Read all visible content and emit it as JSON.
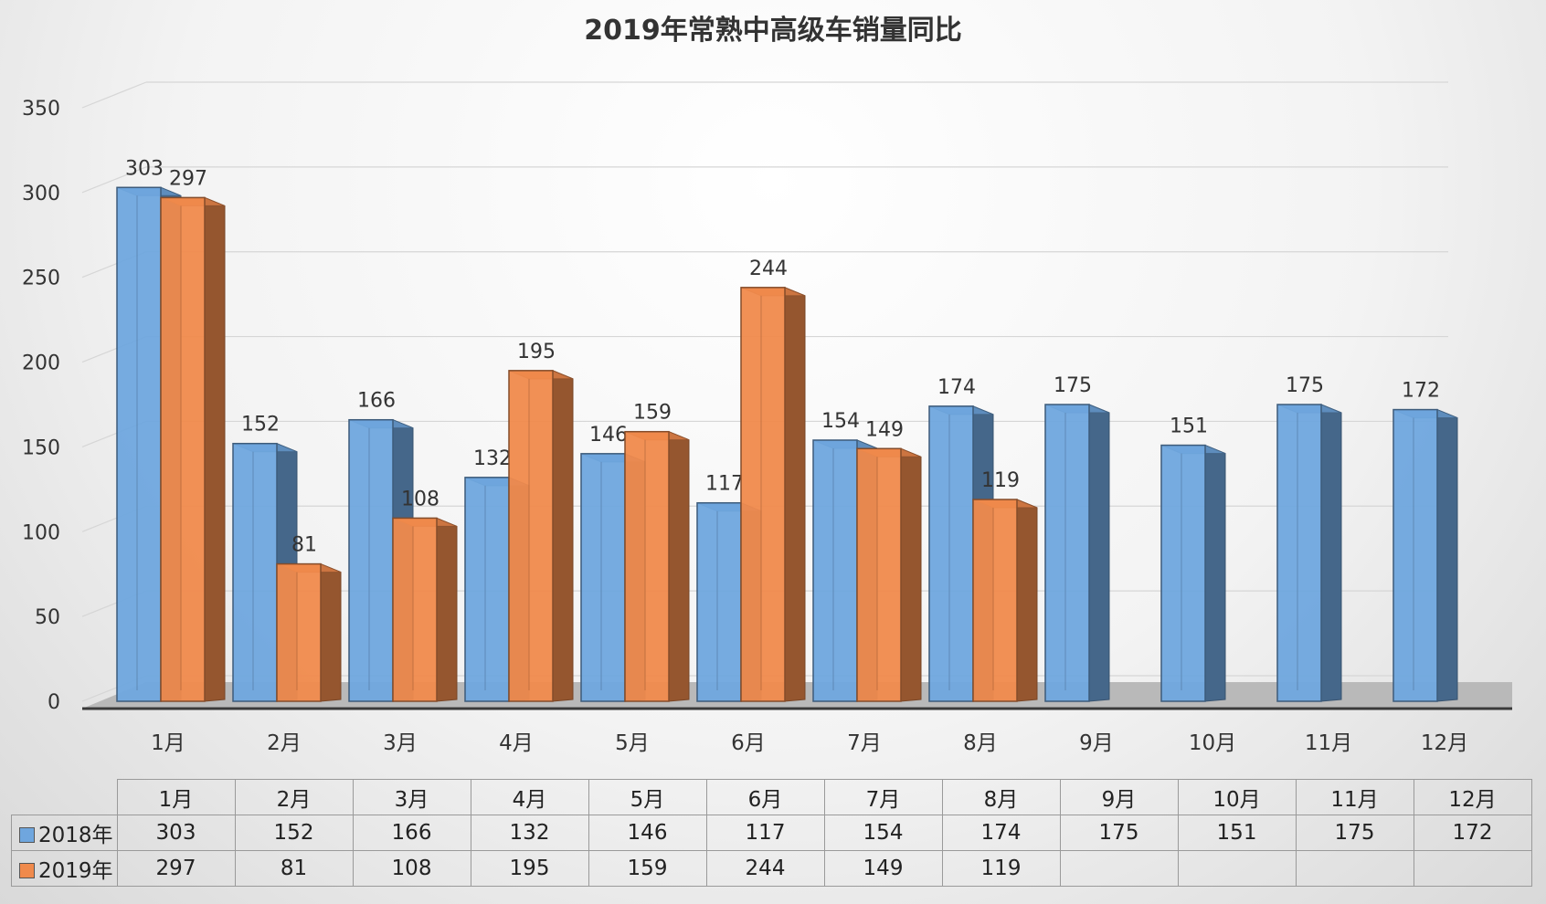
{
  "chart_data": {
    "type": "bar",
    "title": "2019年常熟中高级车销量同比",
    "categories": [
      "1月",
      "2月",
      "3月",
      "4月",
      "5月",
      "6月",
      "7月",
      "8月",
      "9月",
      "10月",
      "11月",
      "12月"
    ],
    "series": [
      {
        "name": "2018年",
        "color": "#6fa6de",
        "values": [
          303,
          152,
          166,
          132,
          146,
          117,
          154,
          174,
          175,
          151,
          175,
          172
        ]
      },
      {
        "name": "2019年",
        "color": "#f08a4c",
        "values": [
          297,
          81,
          108,
          195,
          159,
          244,
          149,
          119,
          null,
          null,
          null,
          null
        ]
      }
    ],
    "ylim": [
      0,
      350
    ],
    "yticks": [
      "0",
      "50",
      "100",
      "150",
      "200",
      "250",
      "300",
      "350"
    ],
    "grid": true,
    "legend": "data-table-below",
    "style": "3d-clustered-column"
  }
}
